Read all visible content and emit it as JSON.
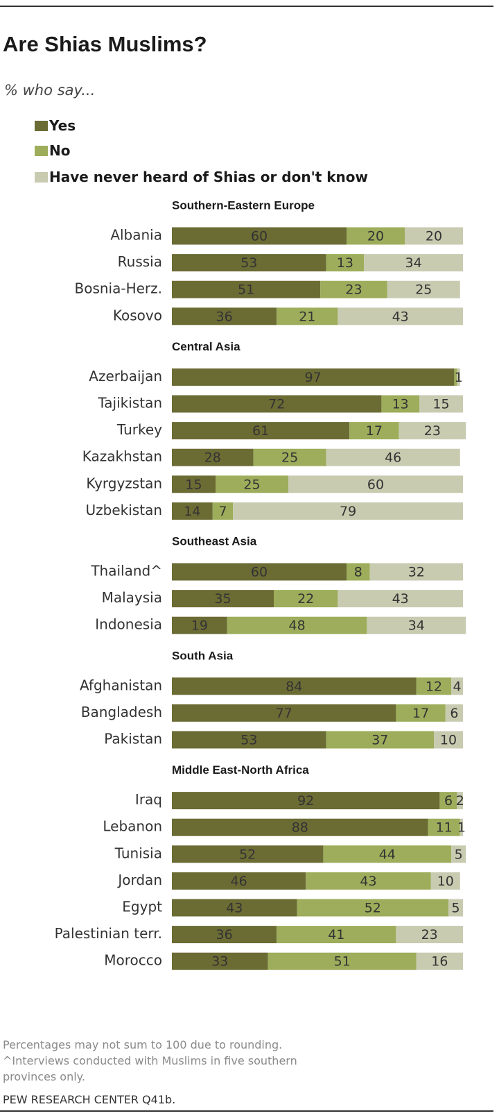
{
  "colors": {
    "yes": "#6b6b34",
    "no": "#9dad5b",
    "unknown": "#c8cbb0",
    "label": "#333333",
    "text": "#1a1a1a"
  },
  "chart_data": {
    "type": "bar",
    "orientation": "horizontal",
    "stacked": true,
    "title": "Are Shias Muslims?",
    "subtitle": "% who say...",
    "legend": [
      "Yes",
      "No",
      "Have never heard of Shias or don't know"
    ],
    "legend_placement": "top-left",
    "groups": [
      {
        "name": "Southern-Eastern  Europe",
        "rows": [
          {
            "country": "Albania",
            "values": [
              60,
              20,
              20
            ]
          },
          {
            "country": "Russia",
            "values": [
              53,
              13,
              34
            ]
          },
          {
            "country": "Bosnia-Herz.",
            "values": [
              51,
              23,
              25
            ]
          },
          {
            "country": "Kosovo",
            "values": [
              36,
              21,
              43
            ]
          }
        ]
      },
      {
        "name": "Central Asia",
        "rows": [
          {
            "country": "Azerbaijan",
            "values": [
              97,
              1,
              1
            ],
            "labels": [
              "97",
              "",
              "1"
            ]
          },
          {
            "country": "Tajikistan",
            "values": [
              72,
              13,
              15
            ]
          },
          {
            "country": "Turkey",
            "values": [
              61,
              17,
              23
            ]
          },
          {
            "country": "Kazakhstan",
            "values": [
              28,
              25,
              46
            ]
          },
          {
            "country": "Kyrgyzstan",
            "values": [
              15,
              25,
              60
            ]
          },
          {
            "country": "Uzbekistan",
            "values": [
              14,
              7,
              79
            ]
          }
        ]
      },
      {
        "name": "Southeast  Asia",
        "rows": [
          {
            "country": "Thailand^",
            "values": [
              60,
              8,
              32
            ]
          },
          {
            "country": "Malaysia",
            "values": [
              35,
              22,
              43
            ]
          },
          {
            "country": "Indonesia",
            "values": [
              19,
              48,
              34
            ]
          }
        ]
      },
      {
        "name": "South  Asia",
        "rows": [
          {
            "country": "Afghanistan",
            "values": [
              84,
              12,
              4
            ]
          },
          {
            "country": "Bangladesh",
            "values": [
              77,
              17,
              6
            ]
          },
          {
            "country": "Pakistan",
            "values": [
              53,
              37,
              10
            ]
          }
        ]
      },
      {
        "name": "Middle East-North  Africa",
        "rows": [
          {
            "country": "Iraq",
            "values": [
              92,
              6,
              2
            ]
          },
          {
            "country": "Lebanon",
            "values": [
              88,
              11,
              1
            ]
          },
          {
            "country": "Tunisia",
            "values": [
              52,
              44,
              5
            ]
          },
          {
            "country": "Jordan",
            "values": [
              46,
              43,
              10
            ]
          },
          {
            "country": "Egypt",
            "values": [
              43,
              52,
              5
            ]
          },
          {
            "country": "Palestinian terr.",
            "values": [
              36,
              41,
              23
            ]
          },
          {
            "country": "Morocco",
            "values": [
              33,
              51,
              16
            ]
          }
        ]
      }
    ]
  },
  "notes": {
    "line1": "Percentages may not sum to 100 due to rounding.",
    "line2": "^Interviews conducted with Muslims in five southern",
    "line3": "provinces only."
  },
  "source": "PEW RESEARCH  CENTER  Q41b."
}
